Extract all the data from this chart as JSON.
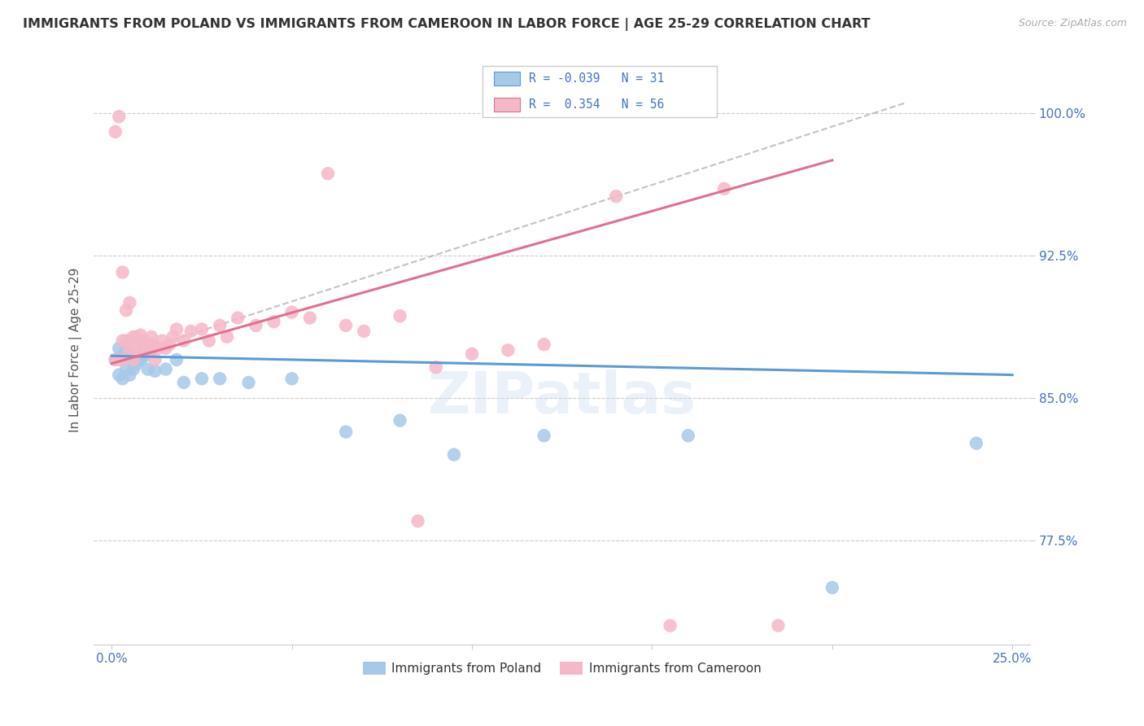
{
  "title": "IMMIGRANTS FROM POLAND VS IMMIGRANTS FROM CAMEROON IN LABOR FORCE | AGE 25-29 CORRELATION CHART",
  "source": "Source: ZipAtlas.com",
  "ylabel": "In Labor Force | Age 25-29",
  "legend_label1": "Immigrants from Poland",
  "legend_label2": "Immigrants from Cameroon",
  "R1": -0.039,
  "N1": 31,
  "R2": 0.354,
  "N2": 56,
  "color_poland": "#a8c8e8",
  "color_cameroon": "#f5b8c8",
  "color_poland_line": "#5b9bd5",
  "color_cameroon_line": "#e07090",
  "xlim": [
    -0.005,
    0.255
  ],
  "ylim": [
    0.72,
    1.03
  ],
  "poland_x": [
    0.001,
    0.002,
    0.002,
    0.003,
    0.003,
    0.004,
    0.004,
    0.005,
    0.005,
    0.006,
    0.006,
    0.007,
    0.008,
    0.009,
    0.01,
    0.011,
    0.012,
    0.015,
    0.018,
    0.02,
    0.025,
    0.03,
    0.038,
    0.05,
    0.065,
    0.08,
    0.095,
    0.12,
    0.16,
    0.2,
    0.24
  ],
  "poland_y": [
    0.87,
    0.876,
    0.862,
    0.872,
    0.86,
    0.875,
    0.865,
    0.874,
    0.862,
    0.87,
    0.865,
    0.868,
    0.87,
    0.872,
    0.865,
    0.875,
    0.864,
    0.865,
    0.87,
    0.858,
    0.86,
    0.86,
    0.858,
    0.86,
    0.832,
    0.838,
    0.82,
    0.83,
    0.83,
    0.75,
    0.826
  ],
  "cameroon_x": [
    0.001,
    0.001,
    0.002,
    0.002,
    0.003,
    0.003,
    0.003,
    0.004,
    0.004,
    0.005,
    0.005,
    0.005,
    0.006,
    0.006,
    0.007,
    0.007,
    0.008,
    0.008,
    0.009,
    0.009,
    0.01,
    0.01,
    0.011,
    0.011,
    0.012,
    0.012,
    0.013,
    0.014,
    0.015,
    0.016,
    0.017,
    0.018,
    0.02,
    0.022,
    0.025,
    0.027,
    0.03,
    0.032,
    0.035,
    0.04,
    0.045,
    0.05,
    0.055,
    0.06,
    0.065,
    0.07,
    0.08,
    0.085,
    0.09,
    0.1,
    0.11,
    0.12,
    0.14,
    0.155,
    0.17,
    0.185
  ],
  "cameroon_y": [
    0.87,
    0.99,
    0.998,
    0.87,
    0.88,
    0.916,
    0.87,
    0.88,
    0.896,
    0.875,
    0.88,
    0.9,
    0.87,
    0.882,
    0.876,
    0.882,
    0.875,
    0.883,
    0.878,
    0.88,
    0.876,
    0.874,
    0.878,
    0.882,
    0.877,
    0.87,
    0.876,
    0.88,
    0.876,
    0.878,
    0.882,
    0.886,
    0.88,
    0.885,
    0.886,
    0.88,
    0.888,
    0.882,
    0.892,
    0.888,
    0.89,
    0.895,
    0.892,
    0.968,
    0.888,
    0.885,
    0.893,
    0.785,
    0.866,
    0.873,
    0.875,
    0.878,
    0.956,
    0.73,
    0.96,
    0.73
  ],
  "dash_line_x": [
    0.0,
    0.22
  ],
  "dash_line_y": [
    0.87,
    1.005
  ],
  "poland_trend_x": [
    0.0,
    0.25
  ],
  "poland_trend_y": [
    0.872,
    0.862
  ],
  "cameroon_trend_x": [
    0.0,
    0.2
  ],
  "cameroon_trend_y": [
    0.868,
    0.975
  ]
}
